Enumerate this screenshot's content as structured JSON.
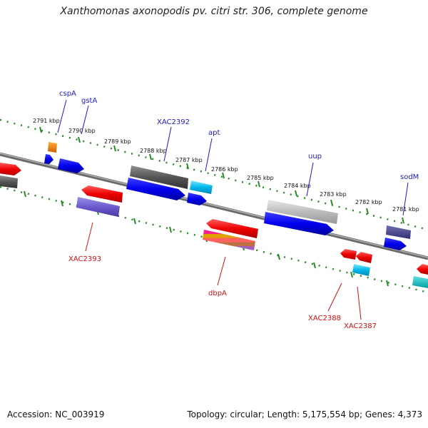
{
  "title": "Xanthomonas axonopodis pv. citri str. 306, complete genome",
  "footer": {
    "accession": "Accession: NC_003919",
    "topology": "Topology: circular; Length: 5,175,554 bp; Genes: 4,373"
  },
  "colors": {
    "backbone": "#8a8a8a",
    "tick": "#2a8a2a",
    "label_forward": "#1a1ad0",
    "label_reverse": "#d01010"
  },
  "tick_labels": [
    "2791 kbp",
    "2790 kbp",
    "2789 kbp",
    "2788 kbp",
    "2787 kbp",
    "2786 kbp",
    "2785 kbp",
    "2784 kbp",
    "2783 kbp",
    "2782 kbp",
    "2781 kbp"
  ],
  "forward_labels": [
    "cspA",
    "gstA",
    "XAC2392",
    "apt",
    "uup",
    "sodM"
  ],
  "reverse_labels": [
    "XAC2393",
    "dbpA",
    "XAC2388",
    "XAC2387"
  ]
}
